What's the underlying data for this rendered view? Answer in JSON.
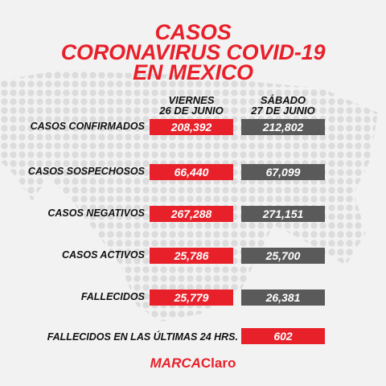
{
  "title": {
    "line1": "CASOS",
    "line2": "CORONAVIRUS COVID-19",
    "line3": "EN MEXICO"
  },
  "columns": [
    {
      "line1": "VIERNES",
      "line2": "26 DE JUNIO"
    },
    {
      "line1": "SÁBADO",
      "line2": "27 DE JUNIO"
    }
  ],
  "rows": [
    {
      "label": "CASOS CONFIRMADOS",
      "viernes": "208,392",
      "sabado": "212,802"
    },
    {
      "label": "CASOS SOSPECHOSOS",
      "viernes": "66,440",
      "sabado": "67,099"
    },
    {
      "label": "CASOS NEGATIVOS",
      "viernes": "267,288",
      "sabado": "271,151"
    },
    {
      "label": "CASOS ACTIVOS",
      "viernes": "25,786",
      "sabado": "25,700"
    },
    {
      "label": "FALLECIDOS",
      "viernes": "25,779",
      "sabado": "26,381"
    }
  ],
  "last24": {
    "label": "FALLECIDOS EN LAS ÚLTIMAS 24 HRS.",
    "value": "602"
  },
  "logo": {
    "brand": "MARCA",
    "sub": "Claro"
  },
  "colors": {
    "accent": "#e8202a",
    "gray": "#5a5a5a",
    "background": "#f2f2f2"
  },
  "icons": {
    "background": "dotted-map-of-mexico"
  }
}
